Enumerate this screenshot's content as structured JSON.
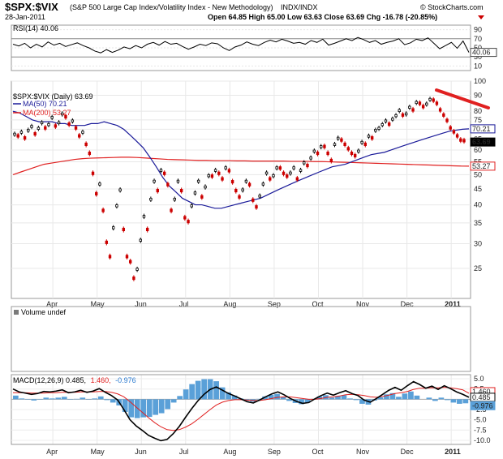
{
  "header": {
    "symbol": "$SPX:$VIX",
    "description": "(S&P 500 Large Cap Index/Volatility Index - New Methodology)",
    "exchange": "INDX/INDX",
    "date": "28-Jan-2011",
    "brand": "© StockCharts.com",
    "ohlc": "Open 64.85  High 65.00  Low 63.63  Close 63.69  Chg -16.78 (-20.85%)"
  },
  "colors": {
    "price_up": "#000000",
    "price_down": "#cc0000",
    "ma50": "#1a1a99",
    "ma200": "#e02020",
    "trendline": "#e02020",
    "macd_line": "#000000",
    "signal_line": "#e02020",
    "histogram": "#5aa0d8",
    "rsi_line": "#000000",
    "volume_icon": "#7a7a7a"
  },
  "chart_data": [
    {
      "panel": "rsi",
      "type": "line",
      "title": "RSI(14) 40.06",
      "ylim": [
        0,
        100
      ],
      "yticks": [
        10,
        30,
        50,
        70,
        90
      ],
      "last_value_badge": "40.06",
      "series": [
        {
          "name": "RSI(14)",
          "values": [
            58,
            54,
            60,
            50,
            58,
            52,
            63,
            56,
            60,
            53,
            57,
            61,
            55,
            50,
            43,
            39,
            46,
            40,
            45,
            52,
            48,
            55,
            50,
            58,
            62,
            56,
            64,
            58,
            60,
            53,
            47,
            52,
            58,
            55,
            61,
            59,
            50,
            44,
            52,
            56,
            63,
            58,
            55,
            62,
            67,
            63,
            69,
            65,
            60,
            62,
            58,
            66,
            62,
            69,
            56,
            60,
            65,
            70,
            66,
            73,
            68,
            62,
            66,
            58,
            62,
            65,
            70,
            57,
            61,
            69,
            66,
            72,
            60,
            48,
            55,
            62,
            49,
            65,
            40
          ]
        }
      ]
    },
    {
      "panel": "price",
      "type": "candlestick",
      "title": "$SPX:$VIX (Daily) 63.69",
      "ylim": [
        20,
        100
      ],
      "log_scale": true,
      "yticks": [
        25,
        30,
        35,
        40,
        45,
        50,
        55,
        60,
        65,
        70,
        75,
        80,
        90,
        100
      ],
      "x_tick_labels": [
        "Apr",
        "May",
        "Jun",
        "Jul",
        "Aug",
        "Sep",
        "Oct",
        "Nov",
        "Dec",
        "2011"
      ],
      "legend": [
        {
          "name": "MA(50) 70.21",
          "color": "#1a1a99"
        },
        {
          "name": "MA(200) 53.27",
          "color": "#e02020"
        }
      ],
      "price_badges": [
        "70.21",
        "63.69",
        "53.27"
      ],
      "close": [
        68,
        66,
        69,
        65,
        70,
        72,
        67,
        71,
        74,
        70,
        73,
        77,
        71,
        74,
        79,
        76,
        72,
        75,
        70,
        66,
        69,
        62,
        58,
        50,
        43,
        47,
        38,
        30,
        27,
        34,
        40,
        45,
        33,
        27,
        26,
        23,
        25,
        31,
        37,
        33,
        42,
        48,
        44,
        52,
        50,
        46,
        38,
        42,
        48,
        44,
        36,
        35,
        40,
        44,
        48,
        42,
        46,
        50,
        49,
        52,
        50,
        48,
        53,
        51,
        47,
        44,
        42,
        45,
        48,
        46,
        41,
        39,
        43,
        47,
        51,
        48,
        50,
        53,
        52,
        50,
        49,
        51,
        53,
        48,
        52,
        55,
        53,
        57,
        60,
        58,
        62,
        61,
        58,
        55,
        63,
        66,
        64,
        62,
        60,
        58,
        57,
        60,
        64,
        62,
        67,
        65,
        70,
        71,
        73,
        75,
        72,
        76,
        78,
        81,
        77,
        79,
        83,
        80,
        86,
        84,
        82,
        85,
        88,
        86,
        84,
        80,
        77,
        74,
        70,
        68,
        66,
        64,
        63.69
      ],
      "ma50": [
        80,
        79,
        77,
        75,
        74,
        74,
        74,
        73,
        73,
        72,
        72,
        72,
        73,
        73,
        74,
        73,
        72,
        70,
        67,
        64,
        61,
        57,
        53,
        49,
        46,
        44,
        42,
        41,
        40,
        40,
        39.5,
        39,
        39,
        39.5,
        40,
        40.5,
        41,
        41.5,
        42,
        43,
        44,
        45,
        46,
        47,
        48,
        49,
        50,
        51,
        52,
        53,
        53.5,
        54,
        55,
        56,
        57,
        58,
        58.5,
        59,
        60,
        61,
        62,
        63,
        64,
        65,
        66,
        67,
        68,
        69,
        69.5,
        70,
        70.21
      ],
      "ma200": [
        50,
        51,
        52,
        53,
        54,
        54.5,
        55,
        55.5,
        56,
        56.3,
        56.5,
        56.6,
        56.7,
        56.8,
        56.9,
        56.9,
        56.8,
        56.6,
        56.4,
        56.2,
        56.0,
        55.9,
        55.8,
        55.7,
        55.6,
        55.6,
        55.5,
        55.5,
        55.5,
        55.4,
        55.4,
        55.3,
        55.3,
        55.3,
        55.3,
        55.3,
        55.2,
        55.2,
        55.2,
        55.1,
        55.1,
        55.0,
        54.9,
        54.8,
        54.7,
        54.6,
        54.5,
        54.4,
        54.3,
        54.2,
        54.1,
        54.0,
        53.9,
        53.8,
        53.7,
        53.6,
        53.5,
        53.4,
        53.3,
        53.27
      ],
      "annotation": "downward red trendline across recent highs"
    },
    {
      "panel": "volume",
      "type": "bar",
      "title": "Volume undef",
      "values": []
    },
    {
      "panel": "macd",
      "type": "line",
      "title": "MACD(12,26,9) 0.485, 1.460, -0.976",
      "title_parts": [
        "MACD(12,26,9) 0.485,",
        "1.460,",
        "-0.976"
      ],
      "ylim": [
        -11,
        6
      ],
      "yticks": [
        5.0,
        2.5,
        0.0,
        -2.5,
        -5.0,
        -7.5,
        -10.0
      ],
      "badges": [
        "1.460",
        "0.485",
        "-0.976"
      ],
      "series": [
        {
          "name": "MACD",
          "values": [
            2.5,
            1.8,
            1.5,
            1.2,
            1.4,
            1.9,
            1.8,
            2.0,
            2.3,
            1.6,
            1.8,
            2.2,
            1.7,
            2.0,
            2.6,
            1.7,
            0.9,
            -0.2,
            -2.5,
            -5.0,
            -6.5,
            -7.6,
            -8.8,
            -9.5,
            -10.1,
            -9.8,
            -8.4,
            -6.6,
            -4.4,
            -2.3,
            -0.4,
            1.2,
            2.4,
            3.0,
            2.2,
            1.4,
            0.8,
            0.1,
            -0.6,
            -0.9,
            -0.2,
            0.6,
            1.3,
            1.8,
            1.1,
            0.2,
            -0.5,
            -1.0,
            -0.8,
            0.1,
            0.9,
            1.5,
            1.0,
            1.6,
            2.1,
            1.4,
            0.9,
            -0.2,
            -0.7,
            0.2,
            1.2,
            2.2,
            2.9,
            2.2,
            3.3,
            4.3,
            3.6,
            2.7,
            3.2,
            2.4,
            3.3,
            2.6,
            1.8,
            1.2,
            0.485
          ]
        },
        {
          "name": "Signal",
          "values": [
            1.6,
            1.6,
            1.6,
            1.5,
            1.5,
            1.5,
            1.6,
            1.6,
            1.7,
            1.7,
            1.7,
            1.8,
            1.8,
            1.8,
            1.9,
            1.9,
            1.7,
            1.3,
            0.6,
            -0.6,
            -1.9,
            -3.2,
            -4.5,
            -5.7,
            -6.7,
            -7.4,
            -7.6,
            -7.4,
            -6.8,
            -6.0,
            -4.9,
            -3.7,
            -2.5,
            -1.4,
            -0.7,
            -0.3,
            -0.1,
            -0.1,
            -0.2,
            -0.3,
            -0.3,
            -0.1,
            0.2,
            0.5,
            0.6,
            0.6,
            0.4,
            0.2,
            0.0,
            0.0,
            0.2,
            0.5,
            0.6,
            0.8,
            1.1,
            1.2,
            1.1,
            0.9,
            0.6,
            0.5,
            0.7,
            1.0,
            1.4,
            1.6,
            1.9,
            2.4,
            2.7,
            2.7,
            2.8,
            2.8,
            2.9,
            2.8,
            2.6,
            2.3,
            1.46
          ]
        },
        {
          "name": "Histogram",
          "values": [
            0.9,
            0.2,
            -0.1,
            -0.3,
            -0.1,
            0.4,
            0.2,
            0.4,
            0.6,
            -0.1,
            0.1,
            0.4,
            -0.1,
            0.2,
            0.7,
            -0.2,
            -0.8,
            -1.5,
            -3.1,
            -4.4,
            -4.6,
            -4.4,
            -4.3,
            -3.8,
            -3.4,
            -2.4,
            -0.8,
            0.8,
            2.4,
            3.7,
            4.5,
            4.9,
            4.9,
            4.4,
            2.9,
            1.7,
            0.9,
            0.2,
            -0.4,
            -0.6,
            0.1,
            0.7,
            1.1,
            1.3,
            0.5,
            -0.4,
            -0.9,
            -1.2,
            -0.8,
            0.1,
            0.7,
            1.0,
            0.4,
            0.8,
            1.0,
            0.2,
            -0.2,
            -1.1,
            -1.3,
            -0.3,
            0.5,
            1.2,
            1.5,
            0.6,
            1.4,
            1.9,
            0.9,
            0.0,
            0.4,
            -0.4,
            0.4,
            -0.2,
            -0.8,
            -1.1,
            -0.976
          ]
        }
      ],
      "x_tick_labels": [
        "Apr",
        "May",
        "Jun",
        "Jul",
        "Aug",
        "Sep",
        "Oct",
        "Nov",
        "Dec",
        "2011"
      ]
    }
  ]
}
